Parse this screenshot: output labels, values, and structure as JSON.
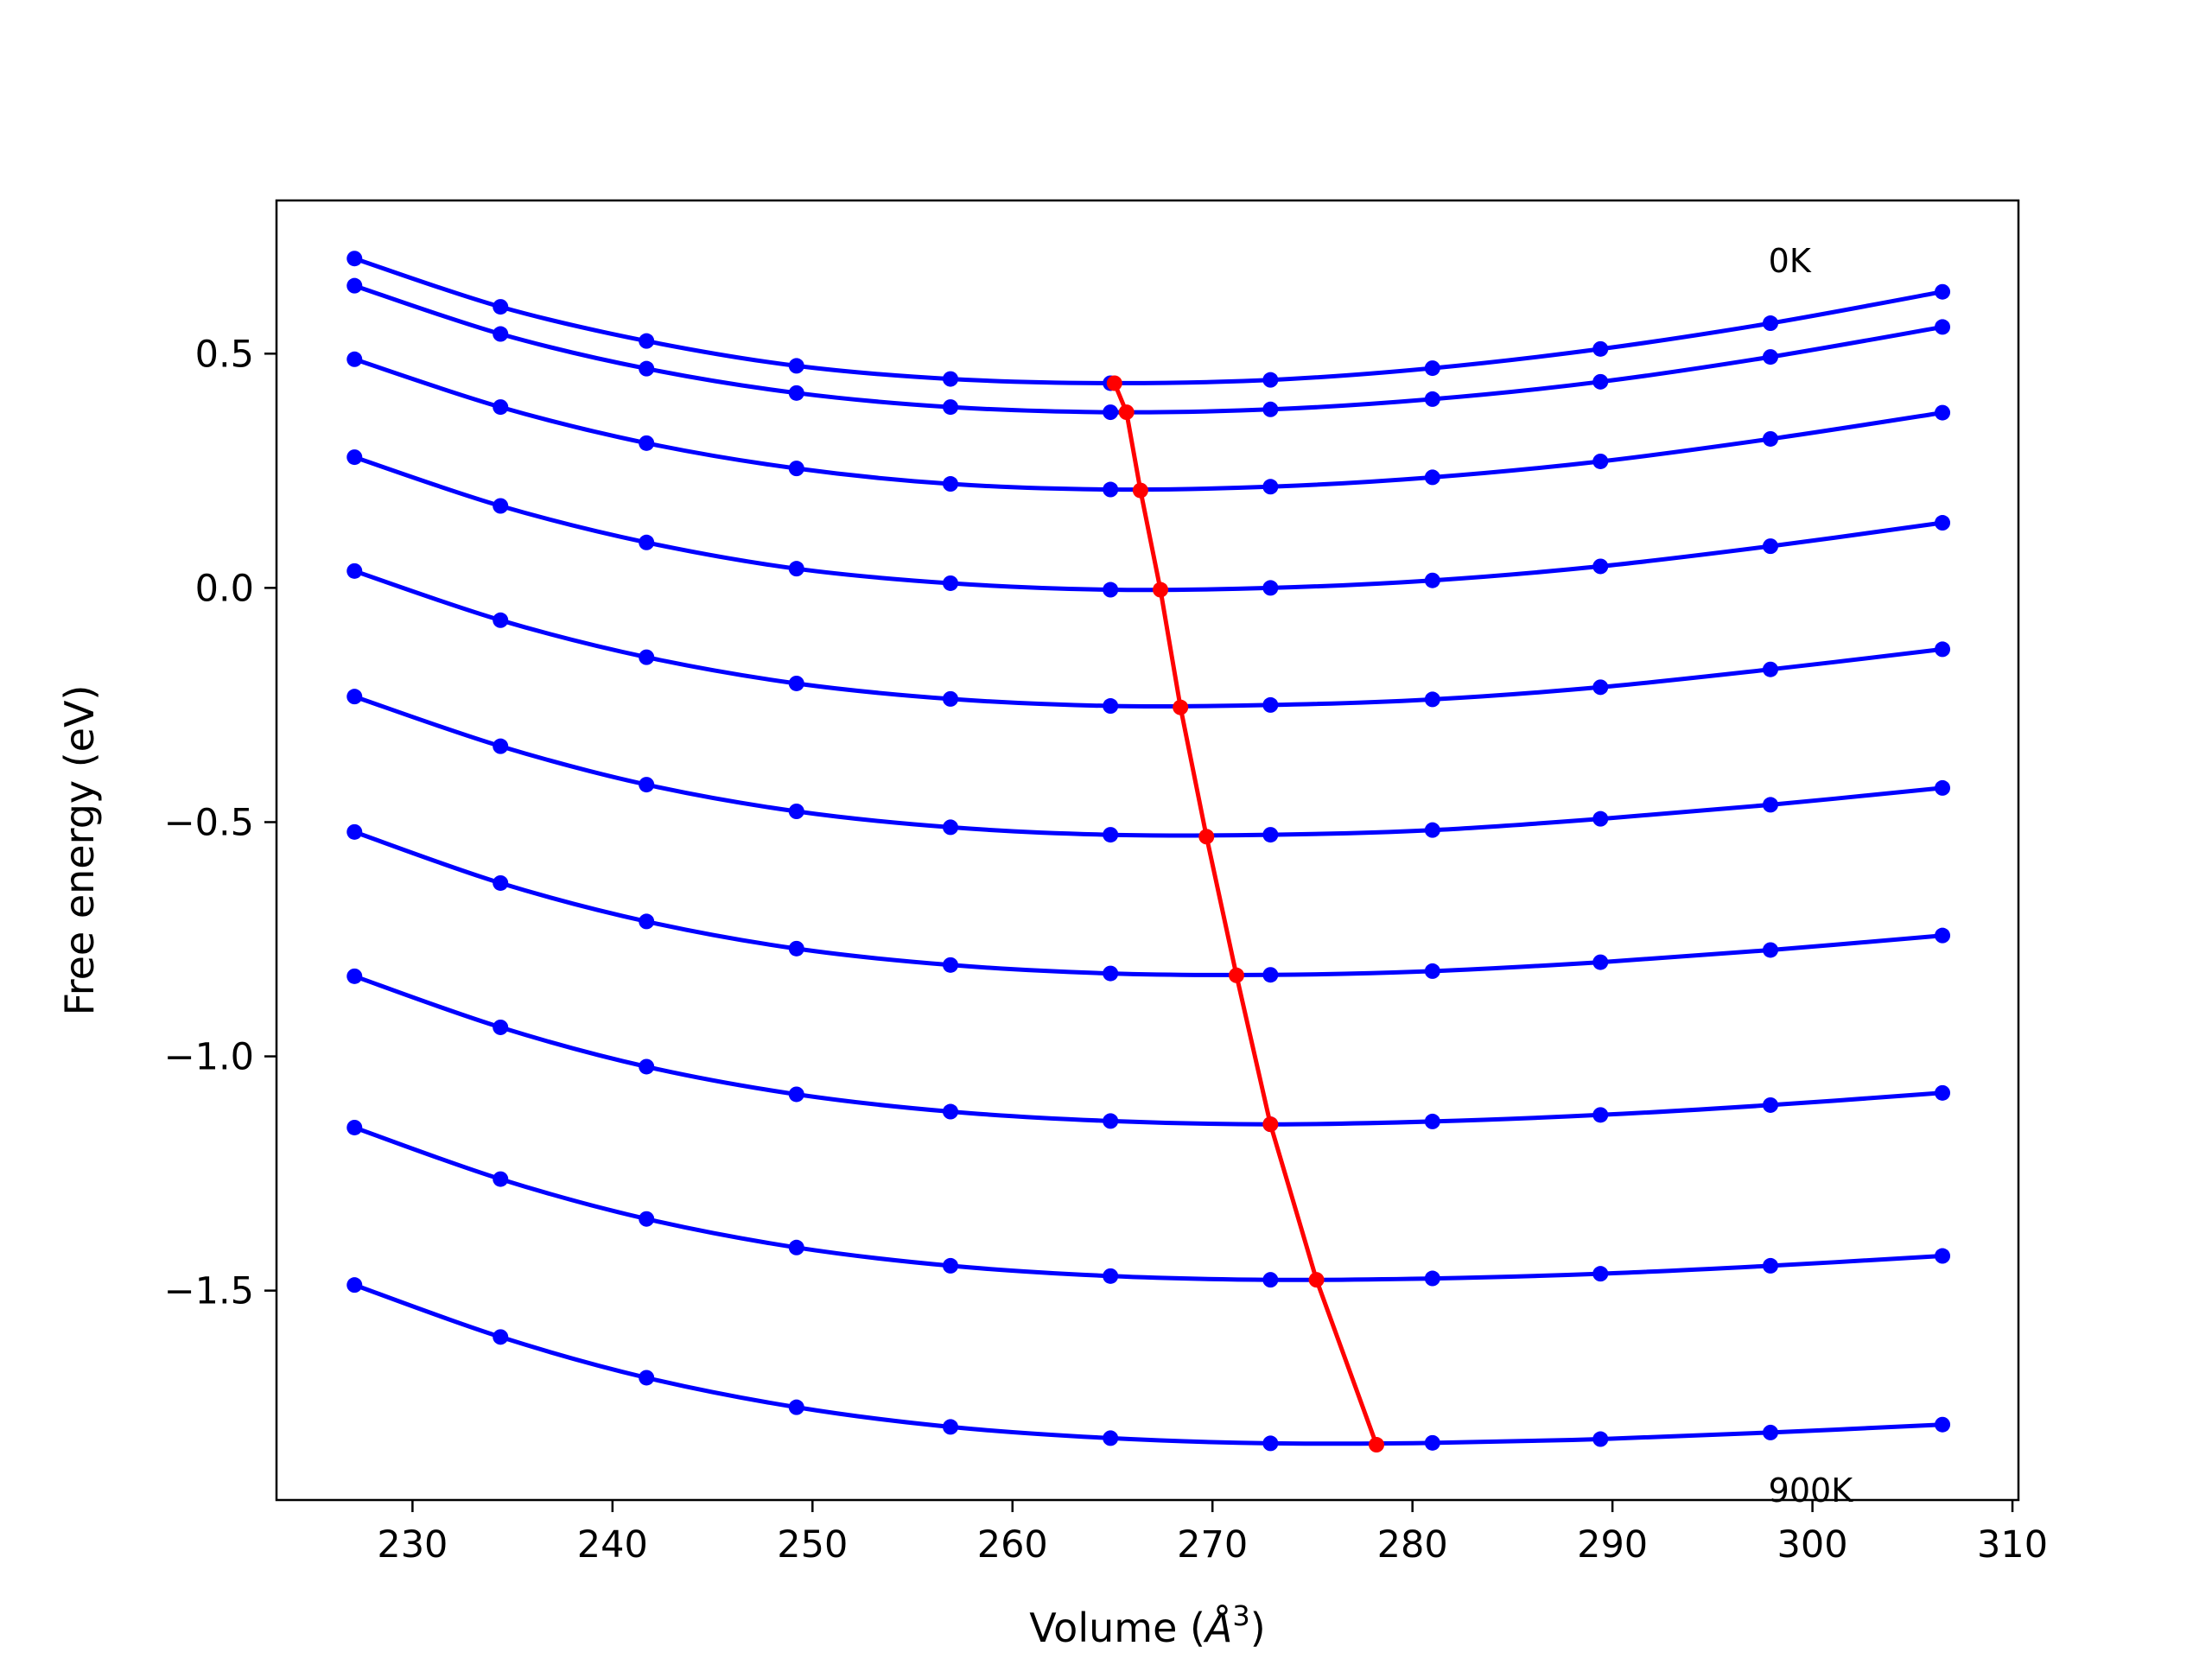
{
  "chart_data": {
    "type": "line",
    "title": "",
    "xlabel": {
      "prefix": "Volume (",
      "unit": "Å",
      "exponent": "3",
      "suffix": ")"
    },
    "ylabel": "Free energy (eV)",
    "xlim": [
      223.2,
      310.3
    ],
    "ylim": [
      -1.947,
      0.827
    ],
    "xticks": [
      230,
      240,
      250,
      260,
      270,
      280,
      290,
      300,
      310
    ],
    "xtick_labels": [
      "230",
      "240",
      "250",
      "260",
      "270",
      "280",
      "290",
      "300",
      "310"
    ],
    "yticks": [
      0.5,
      0.0,
      -0.5,
      -1.0,
      -1.5
    ],
    "ytick_labels": [
      "0.5",
      "0.0",
      "−0.5",
      "−1.0",
      "−1.5"
    ],
    "grid": false,
    "annotations": [
      {
        "text": "0K",
        "x": 297.8,
        "y": 0.7
      },
      {
        "text": "900K",
        "x": 297.8,
        "y": -1.925
      }
    ],
    "x": [
      227.1,
      234.4,
      241.7,
      249.2,
      256.9,
      264.9,
      272.9,
      281.0,
      289.4,
      297.9,
      306.5
    ],
    "series": [
      {
        "name": "",
        "color": "#0000ff",
        "values": [
          0.703,
          0.6,
          0.527,
          0.474,
          0.446,
          0.437,
          0.444,
          0.469,
          0.51,
          0.565,
          0.632
        ]
      },
      {
        "name": "",
        "color": "#0000ff",
        "values": [
          0.645,
          0.542,
          0.468,
          0.416,
          0.386,
          0.375,
          0.381,
          0.403,
          0.44,
          0.493,
          0.557
        ]
      },
      {
        "name": "",
        "color": "#0000ff",
        "values": [
          0.488,
          0.386,
          0.309,
          0.255,
          0.222,
          0.21,
          0.216,
          0.236,
          0.27,
          0.318,
          0.374
        ]
      },
      {
        "name": "",
        "color": "#0000ff",
        "values": [
          0.279,
          0.175,
          0.097,
          0.041,
          0.01,
          -0.004,
          0.0,
          0.016,
          0.046,
          0.089,
          0.139
        ]
      },
      {
        "name": "",
        "color": "#0000ff",
        "values": [
          0.036,
          -0.069,
          -0.148,
          -0.204,
          -0.237,
          -0.252,
          -0.25,
          -0.238,
          -0.212,
          -0.174,
          -0.131
        ]
      },
      {
        "name": "",
        "color": "#0000ff",
        "values": [
          -0.232,
          -0.338,
          -0.42,
          -0.477,
          -0.511,
          -0.527,
          -0.527,
          -0.517,
          -0.493,
          -0.463,
          -0.427
        ]
      },
      {
        "name": "",
        "color": "#0000ff",
        "values": [
          -0.521,
          -0.63,
          -0.712,
          -0.77,
          -0.805,
          -0.823,
          -0.826,
          -0.818,
          -0.799,
          -0.773,
          -0.742
        ]
      },
      {
        "name": "",
        "color": "#0000ff",
        "values": [
          -0.829,
          -0.938,
          -1.022,
          -1.081,
          -1.118,
          -1.138,
          -1.145,
          -1.139,
          -1.125,
          -1.104,
          -1.078
        ]
      },
      {
        "name": "",
        "color": "#0000ff",
        "values": [
          -1.152,
          -1.262,
          -1.347,
          -1.408,
          -1.447,
          -1.469,
          -1.477,
          -1.474,
          -1.464,
          -1.447,
          -1.426
        ]
      },
      {
        "name": "",
        "color": "#0000ff",
        "values": [
          -1.488,
          -1.599,
          -1.686,
          -1.749,
          -1.791,
          -1.815,
          -1.826,
          -1.825,
          -1.817,
          -1.803,
          -1.786
        ]
      }
    ],
    "minimum_line": {
      "name": "",
      "color": "#ff0000",
      "x": [
        265.1,
        265.7,
        266.4,
        267.4,
        268.4,
        269.7,
        271.2,
        272.9,
        275.2,
        278.2
      ],
      "y": [
        0.437,
        0.375,
        0.208,
        -0.004,
        -0.255,
        -0.531,
        -0.827,
        -1.145,
        -1.477,
        -1.829
      ]
    }
  }
}
